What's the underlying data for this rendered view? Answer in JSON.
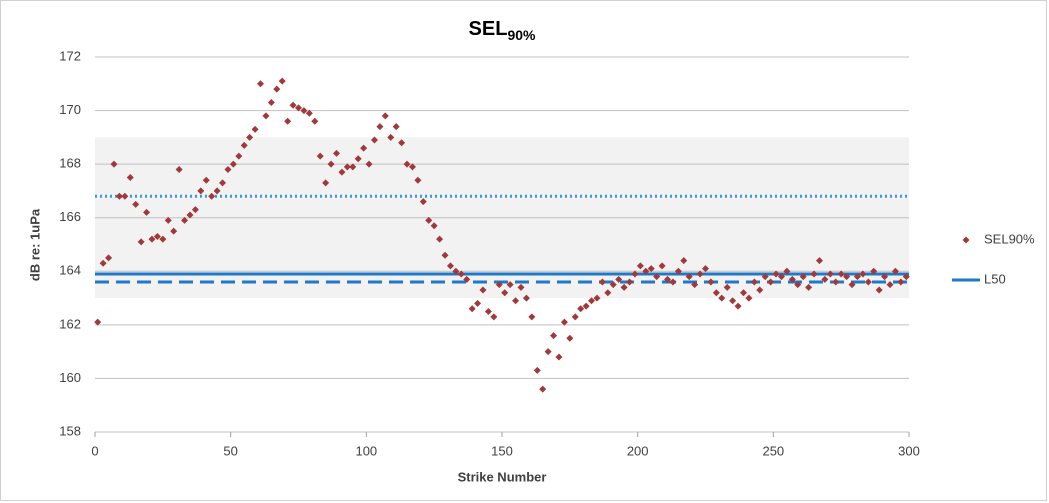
{
  "chart_data": {
    "type": "scatter",
    "title": "SEL",
    "title_subscript": "90%",
    "x_label": "Strike Number",
    "y_label": "dB re: 1uPa",
    "xlim": [
      0,
      300
    ],
    "xticks": [
      0,
      50,
      100,
      150,
      200,
      250,
      300
    ],
    "ylim": [
      158,
      172
    ],
    "yticks": [
      158,
      160,
      162,
      164,
      166,
      168,
      170,
      172
    ],
    "grid": true,
    "legend": "right",
    "band": [
      163,
      169
    ],
    "band_color": "#f2f2f2",
    "reference_lines": [
      {
        "name": "L50",
        "value": 163.9,
        "style": "solid",
        "color": "#1f78c8"
      },
      {
        "value": 166.8,
        "style": "dotted",
        "color": "#3a9ad9"
      },
      {
        "value": 163.6,
        "style": "dashed",
        "color": "#1f78c8"
      }
    ],
    "series": [
      {
        "name": "SEL90%",
        "color": "#a0393a",
        "x": [
          1,
          3,
          5,
          7,
          9,
          11,
          13,
          15,
          17,
          19,
          21,
          23,
          25,
          27,
          29,
          31,
          33,
          35,
          37,
          39,
          41,
          43,
          45,
          47,
          49,
          51,
          53,
          55,
          57,
          59,
          61,
          63,
          65,
          67,
          69,
          71,
          73,
          75,
          77,
          79,
          81,
          83,
          85,
          87,
          89,
          91,
          93,
          95,
          97,
          99,
          101,
          103,
          105,
          107,
          109,
          111,
          113,
          115,
          117,
          119,
          121,
          123,
          125,
          127,
          129,
          131,
          133,
          135,
          137,
          139,
          141,
          143,
          145,
          147,
          149,
          151,
          153,
          155,
          157,
          159,
          161,
          163,
          165,
          167,
          169,
          171,
          173,
          175,
          177,
          179,
          181,
          183,
          185,
          187,
          189,
          191,
          193,
          195,
          197,
          199,
          201,
          203,
          205,
          207,
          209,
          211,
          213,
          215,
          217,
          219,
          221,
          223,
          225,
          227,
          229,
          231,
          233,
          235,
          237,
          239,
          241,
          243,
          245,
          247,
          249,
          251,
          253,
          255,
          257,
          259,
          261,
          263,
          265,
          267,
          269,
          271,
          273,
          275,
          277,
          279,
          281,
          283,
          285,
          287,
          289,
          291,
          293,
          295,
          297,
          299
        ],
        "values": [
          162.1,
          164.3,
          164.5,
          168.0,
          166.8,
          166.8,
          167.5,
          166.5,
          165.1,
          166.2,
          165.2,
          165.3,
          165.2,
          165.9,
          165.5,
          167.8,
          165.9,
          166.1,
          166.3,
          167.0,
          167.4,
          166.8,
          167.0,
          167.3,
          167.8,
          168.0,
          168.3,
          168.7,
          169.0,
          169.3,
          171.0,
          169.8,
          170.3,
          170.8,
          171.1,
          169.6,
          170.2,
          170.1,
          170.0,
          169.9,
          169.6,
          168.3,
          167.3,
          168.0,
          168.4,
          167.7,
          167.9,
          167.9,
          168.2,
          168.6,
          168.0,
          168.9,
          169.4,
          169.8,
          169.0,
          169.4,
          168.8,
          168.0,
          167.9,
          167.4,
          166.6,
          165.9,
          165.7,
          165.2,
          164.6,
          164.2,
          164.0,
          163.9,
          163.7,
          162.6,
          162.8,
          163.3,
          162.5,
          162.3,
          163.5,
          163.2,
          163.5,
          162.9,
          163.4,
          163.0,
          162.3,
          160.3,
          159.6,
          161.0,
          161.6,
          160.8,
          162.1,
          161.5,
          162.3,
          162.6,
          162.7,
          162.9,
          163.0,
          163.6,
          163.2,
          163.5,
          163.7,
          163.4,
          163.6,
          163.9,
          164.2,
          164.0,
          164.1,
          163.8,
          164.2,
          163.7,
          163.6,
          164.0,
          164.4,
          163.8,
          163.5,
          163.9,
          164.1,
          163.6,
          163.2,
          163.0,
          163.4,
          162.9,
          162.7,
          163.2,
          163.0,
          163.6,
          163.3,
          163.8,
          163.6,
          163.9,
          163.8,
          164.0,
          163.7,
          163.5,
          163.8,
          163.4,
          163.9,
          164.4,
          163.7,
          163.9,
          163.6,
          163.9,
          163.8,
          163.5,
          163.8,
          163.9,
          163.6,
          164.0,
          163.3,
          163.8,
          163.5,
          164.0,
          163.6,
          163.8
        ]
      }
    ]
  }
}
